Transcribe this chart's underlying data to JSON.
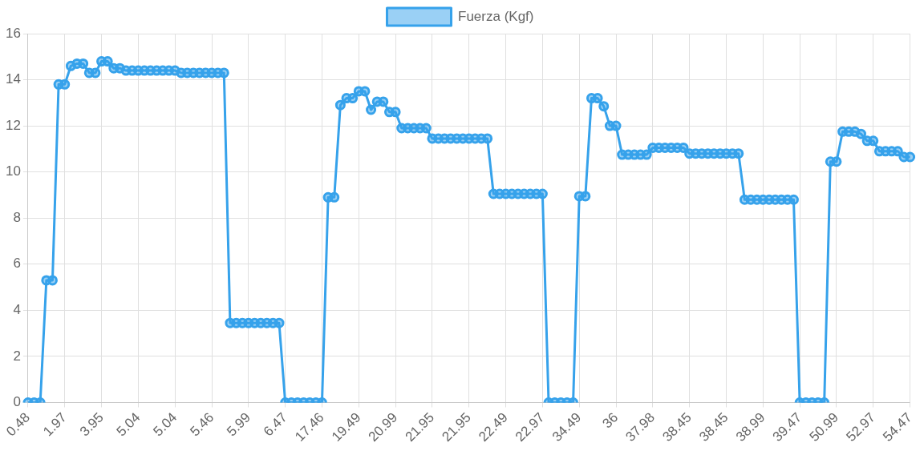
{
  "chart_data": {
    "type": "line",
    "categories": [
      "0.48",
      null,
      null,
      null,
      null,
      null,
      "1.97",
      null,
      null,
      null,
      null,
      null,
      "3.95",
      null,
      null,
      null,
      null,
      null,
      "5.04",
      null,
      null,
      null,
      null,
      null,
      "5.04",
      null,
      null,
      null,
      null,
      null,
      "5.46",
      null,
      null,
      null,
      null,
      null,
      "5.99",
      null,
      null,
      null,
      null,
      null,
      "6.47",
      null,
      null,
      null,
      null,
      null,
      "17.46",
      null,
      null,
      null,
      null,
      null,
      "19.49",
      null,
      null,
      null,
      null,
      null,
      "20.99",
      null,
      null,
      null,
      null,
      null,
      "21.95",
      null,
      null,
      null,
      null,
      null,
      "21.95",
      null,
      null,
      null,
      null,
      null,
      "22.49",
      null,
      null,
      null,
      null,
      null,
      "22.97",
      null,
      null,
      null,
      null,
      null,
      "34.49",
      null,
      null,
      null,
      null,
      null,
      "36",
      null,
      null,
      null,
      null,
      null,
      "37.98",
      null,
      null,
      null,
      null,
      null,
      "38.45",
      null,
      null,
      null,
      null,
      null,
      "38.45",
      null,
      null,
      null,
      null,
      null,
      "38.99",
      null,
      null,
      null,
      null,
      null,
      "39.47",
      null,
      null,
      null,
      null,
      null,
      "50.99",
      null,
      null,
      null,
      null,
      null,
      "52.97",
      null,
      null,
      null,
      null,
      null,
      "54.47"
    ],
    "series": [
      {
        "name": "Fuerza (Kgf)",
        "color": "#36a2eb",
        "values": [
          0,
          0,
          0,
          5.3,
          5.3,
          13.8,
          13.8,
          14.6,
          14.7,
          14.7,
          14.3,
          14.3,
          14.8,
          14.8,
          14.5,
          14.5,
          14.4,
          14.4,
          14.4,
          14.4,
          14.4,
          14.4,
          14.4,
          14.4,
          14.4,
          14.3,
          14.3,
          14.3,
          14.3,
          14.3,
          14.3,
          14.3,
          14.3,
          3.45,
          3.45,
          3.45,
          3.45,
          3.45,
          3.45,
          3.45,
          3.45,
          3.45,
          0,
          0,
          0,
          0,
          0,
          0,
          0,
          8.9,
          8.9,
          12.9,
          13.2,
          13.2,
          13.5,
          13.5,
          12.7,
          13.05,
          13.05,
          12.6,
          12.6,
          11.9,
          11.9,
          11.9,
          11.9,
          11.9,
          11.45,
          11.45,
          11.45,
          11.45,
          11.45,
          11.45,
          11.45,
          11.45,
          11.45,
          11.45,
          9.05,
          9.05,
          9.05,
          9.05,
          9.05,
          9.05,
          9.05,
          9.05,
          9.05,
          0,
          0,
          0,
          0,
          0,
          8.95,
          8.95,
          13.2,
          13.2,
          12.85,
          12.0,
          12.0,
          10.75,
          10.75,
          10.75,
          10.75,
          10.75,
          11.05,
          11.05,
          11.05,
          11.05,
          11.05,
          11.05,
          10.8,
          10.8,
          10.8,
          10.8,
          10.8,
          10.8,
          10.8,
          10.8,
          10.8,
          8.8,
          8.8,
          8.8,
          8.8,
          8.8,
          8.8,
          8.8,
          8.8,
          8.8,
          0,
          0,
          0,
          0,
          0,
          10.45,
          10.45,
          11.75,
          11.75,
          11.75,
          11.65,
          11.35,
          11.35,
          10.9,
          10.9,
          10.9,
          10.9,
          10.65,
          10.65
        ]
      }
    ],
    "ylim": [
      0,
      16
    ],
    "yticks": [
      0,
      2,
      4,
      6,
      8,
      10,
      12,
      14,
      16
    ],
    "grid": true,
    "legend": "top",
    "marker": "circle",
    "line_style": "solid"
  }
}
